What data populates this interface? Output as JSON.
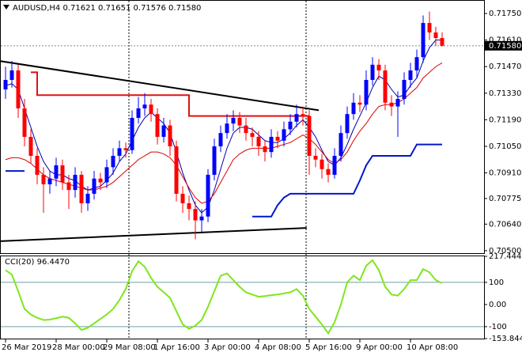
{
  "chart_data": [
    {
      "type": "candlestick",
      "title": "AUDUSD,H4  0.71621 0.71651 0.71576 0.71580",
      "candles": [
        [
          0.7135,
          0.7147,
          0.713,
          0.714
        ],
        [
          0.714,
          0.715,
          0.7136,
          0.7145
        ],
        [
          0.7145,
          0.7148,
          0.712,
          0.7125
        ],
        [
          0.7125,
          0.713,
          0.7105,
          0.711
        ],
        [
          0.711,
          0.7114,
          0.7096,
          0.71
        ],
        [
          0.71,
          0.7104,
          0.7085,
          0.709
        ],
        [
          0.709,
          0.7094,
          0.707,
          0.7085
        ],
        [
          0.7085,
          0.7092,
          0.708,
          0.7088
        ],
        [
          0.7088,
          0.7099,
          0.7084,
          0.7095
        ],
        [
          0.7095,
          0.7098,
          0.7082,
          0.7086
        ],
        [
          0.7086,
          0.709,
          0.7072,
          0.7082
        ],
        [
          0.7082,
          0.7094,
          0.7078,
          0.709
        ],
        [
          0.709,
          0.7092,
          0.707,
          0.7075
        ],
        [
          0.7075,
          0.7084,
          0.7071,
          0.708
        ],
        [
          0.708,
          0.7092,
          0.7077,
          0.7088
        ],
        [
          0.7088,
          0.7091,
          0.7082,
          0.7086
        ],
        [
          0.7086,
          0.7098,
          0.7083,
          0.7094
        ],
        [
          0.7094,
          0.7104,
          0.709,
          0.71
        ],
        [
          0.71,
          0.7108,
          0.7097,
          0.7104
        ],
        [
          0.7104,
          0.7107,
          0.7099,
          0.7103
        ],
        [
          0.7103,
          0.7124,
          0.7101,
          0.712
        ],
        [
          0.712,
          0.7131,
          0.7117,
          0.7125
        ],
        [
          0.7125,
          0.7133,
          0.7121,
          0.7127
        ],
        [
          0.7127,
          0.713,
          0.7118,
          0.7122
        ],
        [
          0.7122,
          0.7125,
          0.7106,
          0.711
        ],
        [
          0.711,
          0.712,
          0.7107,
          0.7116
        ],
        [
          0.7116,
          0.7119,
          0.71,
          0.7105
        ],
        [
          0.7105,
          0.7108,
          0.7076,
          0.708
        ],
        [
          0.708,
          0.7084,
          0.707,
          0.7075
        ],
        [
          0.7075,
          0.7079,
          0.7066,
          0.7072
        ],
        [
          0.7072,
          0.7076,
          0.7056,
          0.7066
        ],
        [
          0.7066,
          0.7072,
          0.706,
          0.7068
        ],
        [
          0.7068,
          0.7093,
          0.7065,
          0.709
        ],
        [
          0.709,
          0.7109,
          0.7087,
          0.7105
        ],
        [
          0.7105,
          0.7116,
          0.7102,
          0.7112
        ],
        [
          0.7112,
          0.7122,
          0.7109,
          0.7117
        ],
        [
          0.7117,
          0.7124,
          0.7113,
          0.712
        ],
        [
          0.712,
          0.7123,
          0.7112,
          0.7116
        ],
        [
          0.7116,
          0.712,
          0.7108,
          0.7112
        ],
        [
          0.7112,
          0.7115,
          0.7105,
          0.711
        ],
        [
          0.711,
          0.7113,
          0.71,
          0.7105
        ],
        [
          0.7105,
          0.7108,
          0.7097,
          0.7102
        ],
        [
          0.7102,
          0.7114,
          0.7099,
          0.711
        ],
        [
          0.711,
          0.7113,
          0.7104,
          0.7108
        ],
        [
          0.7108,
          0.7118,
          0.7105,
          0.7114
        ],
        [
          0.7114,
          0.7122,
          0.7111,
          0.7118
        ],
        [
          0.7118,
          0.7127,
          0.7115,
          0.7122
        ],
        [
          0.7122,
          0.7126,
          0.7116,
          0.7121
        ],
        [
          0.7121,
          0.7124,
          0.709,
          0.71
        ],
        [
          0.71,
          0.7104,
          0.7094,
          0.7098
        ],
        [
          0.7098,
          0.7101,
          0.7088,
          0.7093
        ],
        [
          0.7093,
          0.7096,
          0.7086,
          0.709
        ],
        [
          0.709,
          0.7104,
          0.7088,
          0.71
        ],
        [
          0.71,
          0.7116,
          0.7097,
          0.7112
        ],
        [
          0.7112,
          0.7126,
          0.7109,
          0.7122
        ],
        [
          0.7122,
          0.7133,
          0.7119,
          0.7128
        ],
        [
          0.7128,
          0.7132,
          0.7123,
          0.7127
        ],
        [
          0.7127,
          0.7145,
          0.7124,
          0.714
        ],
        [
          0.714,
          0.7152,
          0.7137,
          0.7148
        ],
        [
          0.7148,
          0.7151,
          0.714,
          0.7145
        ],
        [
          0.7145,
          0.7148,
          0.7124,
          0.7128
        ],
        [
          0.7128,
          0.7132,
          0.7121,
          0.7126
        ],
        [
          0.7126,
          0.7134,
          0.711,
          0.713
        ],
        [
          0.713,
          0.7144,
          0.7127,
          0.714
        ],
        [
          0.714,
          0.7149,
          0.7136,
          0.7145
        ],
        [
          0.7145,
          0.7156,
          0.7141,
          0.7152
        ],
        [
          0.7152,
          0.7174,
          0.7149,
          0.717
        ],
        [
          0.717,
          0.7176,
          0.7161,
          0.7165
        ],
        [
          0.7165,
          0.7168,
          0.7158,
          0.71621
        ],
        [
          0.71621,
          0.71651,
          0.71576,
          0.7158
        ]
      ],
      "candle_colors": {
        "up": "#0000ff",
        "down": "#ff0000"
      },
      "series": [
        {
          "color": "#0000aa",
          "width": 1,
          "style": "line",
          "values": [
            0.7137,
            0.7138,
            0.7135,
            0.7125,
            0.7115,
            0.7105,
            0.7097,
            0.7092,
            0.709,
            0.709,
            0.7088,
            0.7087,
            0.7084,
            0.7082,
            0.7083,
            0.7084,
            0.7087,
            0.7091,
            0.7097,
            0.7101,
            0.7108,
            0.7115,
            0.712,
            0.7123,
            0.712,
            0.7117,
            0.7112,
            0.7102,
            0.7091,
            0.7082,
            0.7074,
            0.707,
            0.7073,
            0.7082,
            0.7093,
            0.7104,
            0.7112,
            0.7115,
            0.7115,
            0.7114,
            0.7111,
            0.7108,
            0.7107,
            0.7107,
            0.7109,
            0.7112,
            0.7116,
            0.7119,
            0.7115,
            0.711,
            0.7103,
            0.7097,
            0.7095,
            0.7099,
            0.7106,
            0.7114,
            0.7121,
            0.7128,
            0.7136,
            0.7142,
            0.714,
            0.7135,
            0.7131,
            0.7132,
            0.7137,
            0.7141,
            0.715,
            0.7157,
            0.7161,
            0.7161
          ]
        },
        {
          "color": "#dd0000",
          "width": 1,
          "style": "line",
          "values": [
            0.7098,
            0.7099,
            0.7099,
            0.7098,
            0.7096,
            0.7093,
            0.709,
            0.7088,
            0.7087,
            0.7086,
            0.7085,
            0.7084,
            0.7083,
            0.7082,
            0.7082,
            0.7083,
            0.7084,
            0.7086,
            0.7089,
            0.7092,
            0.7095,
            0.7098,
            0.71,
            0.7102,
            0.7102,
            0.7101,
            0.7099,
            0.7095,
            0.7089,
            0.7083,
            0.7078,
            0.7075,
            0.7076,
            0.708,
            0.7086,
            0.7092,
            0.7098,
            0.7101,
            0.7103,
            0.7104,
            0.7104,
            0.7104,
            0.7104,
            0.7105,
            0.7106,
            0.7107,
            0.7109,
            0.7111,
            0.7109,
            0.7106,
            0.7102,
            0.7098,
            0.7096,
            0.7098,
            0.7102,
            0.7108,
            0.7113,
            0.7117,
            0.7122,
            0.7126,
            0.7127,
            0.7127,
            0.7128,
            0.713,
            0.7133,
            0.7136,
            0.7141,
            0.7144,
            0.7147,
            0.7149
          ]
        },
        {
          "color": "#dd1111",
          "width": 2,
          "style": "step",
          "values": [
            null,
            null,
            null,
            null,
            0.7144,
            0.7132,
            0.7132,
            0.7132,
            0.7132,
            0.7132,
            0.7132,
            0.7132,
            0.7132,
            0.7132,
            0.7132,
            0.7132,
            0.7132,
            0.7132,
            0.7132,
            0.7132,
            0.7132,
            0.7132,
            0.7132,
            0.7132,
            0.7132,
            0.7132,
            0.7132,
            0.7132,
            0.7132,
            0.7121,
            0.7121,
            0.7121,
            0.7121,
            0.7121,
            0.7121,
            0.7121,
            0.7121,
            0.7121,
            0.7121,
            0.7121,
            0.7121,
            0.7121,
            0.7121,
            0.7121,
            0.7121,
            0.7121,
            0.7121,
            0.7121,
            0.7121,
            null,
            null,
            null,
            null,
            null,
            null,
            null,
            null,
            null,
            null,
            null,
            null,
            null,
            null,
            null,
            null,
            null,
            null,
            null,
            null,
            null
          ]
        },
        {
          "color": "#0018c8",
          "width": 2,
          "style": "line",
          "values": [
            0.7092,
            0.7092,
            0.7092,
            0.7092,
            null,
            null,
            null,
            null,
            null,
            null,
            null,
            null,
            null,
            null,
            null,
            null,
            null,
            null,
            null,
            null,
            null,
            null,
            null,
            null,
            null,
            null,
            null,
            null,
            null,
            null,
            null,
            null,
            null,
            null,
            null,
            null,
            null,
            null,
            null,
            0.7068,
            0.7068,
            0.7068,
            0.7068,
            0.7074,
            0.7078,
            0.708,
            0.708,
            0.708,
            0.708,
            0.708,
            0.708,
            0.708,
            0.708,
            0.708,
            0.708,
            0.708,
            0.7087,
            0.7095,
            0.71,
            0.71,
            0.71,
            0.71,
            0.71,
            0.71,
            0.71,
            0.7106,
            0.7106,
            0.7106,
            0.7106,
            0.7106
          ]
        }
      ],
      "trendlines": [
        {
          "color": "#000000",
          "x": [
            -1,
            49.5
          ],
          "y": [
            0.715,
            0.7124
          ]
        },
        {
          "color": "#000000",
          "x": [
            -1,
            47.6
          ],
          "y": [
            0.7055,
            0.7062
          ]
        }
      ],
      "current_price": {
        "value": 0.7158,
        "label": "0.71580"
      },
      "xlim": [
        -0.875,
        75.625
      ],
      "ylim": [
        0.70487,
        0.71817
      ],
      "yticks": [
        {
          "value": 0.7175,
          "label": "0.71750"
        },
        {
          "value": 0.7161,
          "label": "0.71610"
        },
        {
          "value": 0.7147,
          "label": "0.71470"
        },
        {
          "value": 0.7133,
          "label": "0.71330"
        },
        {
          "value": 0.7119,
          "label": "0.71190"
        },
        {
          "value": 0.7105,
          "label": "0.71050"
        },
        {
          "value": 0.7091,
          "label": "0.70910"
        },
        {
          "value": 0.70775,
          "label": "0.70775"
        },
        {
          "value": 0.7064,
          "label": "0.70640"
        },
        {
          "value": 0.705,
          "label": "0.70500"
        }
      ],
      "xticks": [
        {
          "value": 0,
          "label": "26 Mar 2019"
        },
        {
          "value": 8,
          "label": "28 Mar 00:00"
        },
        {
          "value": 16,
          "label": "29 Mar 08:00"
        },
        {
          "value": 24,
          "label": "1 Apr 16:00"
        },
        {
          "value": 32,
          "label": "3 Apr 00:00"
        },
        {
          "value": 40,
          "label": "4 Apr 08:00"
        },
        {
          "value": 48,
          "label": "5 Apr 16:00"
        },
        {
          "value": 56,
          "label": "9 Apr 00:00"
        },
        {
          "value": 64,
          "label": "10 Apr 08:00"
        }
      ]
    },
    {
      "type": "line",
      "title": "CCI(20) 96.4470",
      "series": [
        {
          "color": "#7fe61e",
          "values": [
            155,
            135,
            60,
            -20,
            -45,
            -60,
            -70,
            -68,
            -62,
            -55,
            -60,
            -85,
            -115,
            -105,
            -85,
            -65,
            -45,
            -20,
            20,
            70,
            150,
            195,
            170,
            120,
            80,
            55,
            30,
            -30,
            -90,
            -110,
            -95,
            -70,
            -10,
            60,
            130,
            140,
            110,
            80,
            55,
            45,
            35,
            38,
            42,
            45,
            50,
            55,
            70,
            40,
            -20,
            -55,
            -90,
            -130,
            -80,
            0,
            100,
            130,
            110,
            175,
            200,
            155,
            80,
            45,
            40,
            70,
            110,
            110,
            160,
            145,
            110,
            96.447
          ]
        }
      ],
      "levels": [
        100,
        -100
      ],
      "xlim": [
        -0.875,
        75.625
      ],
      "ylim": [
        -153.8447,
        217.4443
      ],
      "yticks": [
        217.4443,
        100,
        {
          "value": 0,
          "label": "0.00"
        },
        -100,
        -153.8447
      ]
    }
  ]
}
